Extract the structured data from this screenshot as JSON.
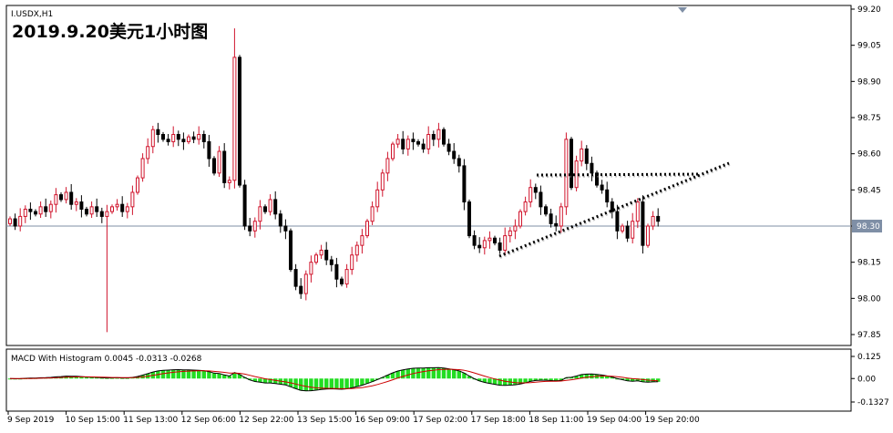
{
  "symbol_label": "I.USDX,H1",
  "overlay_title": "2019.9.20美元1小时图",
  "current_price": "98.30",
  "price_ticks": [
    "99.20",
    "99.05",
    "98.90",
    "98.75",
    "98.60",
    "98.45",
    "98.30",
    "98.15",
    "98.00",
    "97.85"
  ],
  "macd": {
    "label": "MACD With Histogram 0.0045 -0.0313 -0.0268",
    "ticks": [
      "0.125",
      "0.00",
      "-0.1327"
    ]
  },
  "time_ticks": [
    "9 Sep 2019",
    "10 Sep 15:00",
    "11 Sep 13:00",
    "12 Sep 06:00",
    "12 Sep 22:00",
    "13 Sep 15:00",
    "16 Sep 09:00",
    "17 Sep 02:00",
    "17 Sep 18:00",
    "18 Sep 11:00",
    "19 Sep 04:00",
    "19 Sep 20:00"
  ],
  "colors": {
    "bull": "#d0142c",
    "bear": "#000000",
    "grid": "#000000",
    "current_line": "#7f8fa6",
    "hist": "#22dd22",
    "signal": "#cc0000",
    "macd_line": "#000000",
    "frame_bg": "#ffffff"
  },
  "chart_data": {
    "type": "candlestick",
    "title": "2019.9.20美元1小时图",
    "symbol": "I.USDX",
    "timeframe": "H1",
    "ylim": [
      97.78,
      99.22
    ],
    "last_price": 98.3,
    "closes": [
      98.33,
      98.3,
      98.34,
      98.37,
      98.36,
      98.35,
      98.38,
      98.36,
      98.39,
      98.43,
      98.41,
      98.44,
      98.39,
      98.4,
      98.37,
      98.35,
      98.38,
      98.36,
      98.34,
      98.36,
      98.38,
      98.39,
      98.36,
      98.38,
      98.44,
      98.5,
      98.58,
      98.63,
      98.7,
      98.68,
      98.66,
      98.65,
      98.68,
      98.66,
      98.65,
      98.67,
      98.66,
      98.68,
      98.65,
      98.58,
      98.52,
      98.61,
      98.48,
      98.49,
      99.0,
      98.47,
      98.3,
      98.28,
      98.32,
      98.38,
      98.36,
      98.41,
      98.35,
      98.3,
      98.28,
      98.12,
      98.05,
      98.02,
      98.1,
      98.15,
      98.18,
      98.2,
      98.16,
      98.14,
      98.08,
      98.06,
      98.12,
      98.18,
      98.22,
      98.26,
      98.32,
      98.38,
      98.45,
      98.52,
      98.58,
      98.64,
      98.66,
      98.62,
      98.66,
      98.65,
      98.64,
      98.62,
      98.68,
      98.66,
      98.7,
      98.64,
      98.61,
      98.58,
      98.55,
      98.4,
      98.26,
      98.22,
      98.21,
      98.24,
      98.25,
      98.23,
      98.2,
      98.26,
      98.28,
      98.3,
      98.36,
      98.4,
      98.46,
      98.44,
      98.38,
      98.35,
      98.31,
      98.3,
      98.38,
      98.66,
      98.46,
      98.57,
      98.62,
      98.56,
      98.52,
      98.47,
      98.45,
      98.4,
      98.36,
      98.28,
      98.3,
      98.25,
      98.32,
      98.4,
      98.22,
      98.3,
      98.34,
      98.32
    ]
  }
}
